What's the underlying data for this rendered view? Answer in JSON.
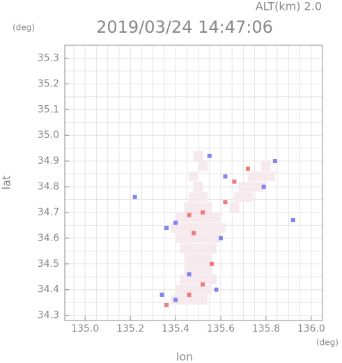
{
  "chart_data": {
    "type": "scatter",
    "title": "2019/03/24 14:47:06",
    "subtitle": "ALT(km)  2.0",
    "y_unit": "(deg)",
    "x_unit": "(deg)",
    "xlabel": "lon",
    "ylabel": "lat",
    "xlim": [
      134.91,
      136.05
    ],
    "ylim": [
      34.28,
      35.35
    ],
    "xticks": [
      {
        "value": 135,
        "label": "135.0"
      },
      135.2,
      135.4,
      135.6,
      135.8,
      {
        "value": 136,
        "label": "136.0"
      }
    ],
    "yticks": [
      34.3,
      34.4,
      34.5,
      34.6,
      34.7,
      34.8,
      34.9,
      {
        "value": 35,
        "label": "35.0"
      },
      35.1,
      35.2,
      35.3
    ],
    "xgrid": [
      134.95,
      135,
      135.05,
      135.1,
      135.15,
      135.2,
      135.25,
      135.3,
      135.35,
      135.4,
      135.45,
      135.5,
      135.55,
      135.6,
      135.65,
      135.7,
      135.75,
      135.8,
      135.85,
      135.9,
      135.95,
      136,
      136.05
    ],
    "ygrid": [
      34.3,
      34.35,
      34.4,
      34.45,
      34.5,
      34.55,
      34.6,
      34.65,
      34.7,
      34.75,
      34.8,
      34.85,
      34.9,
      34.95,
      35,
      35.05,
      35.1,
      35.15,
      35.2,
      35.25,
      35.3,
      35.35
    ],
    "grid": true,
    "series": [
      {
        "color": "#f6eaee",
        "x": [
          135.4,
          135.44,
          135.48,
          135.52,
          135.42,
          135.46,
          135.5,
          135.54,
          135.44,
          135.48,
          135.52,
          135.56,
          135.46,
          135.5,
          135.54,
          135.46,
          135.5,
          135.54,
          135.44,
          135.48,
          135.52,
          135.56,
          135.42,
          135.46,
          135.5,
          135.54,
          135.58,
          135.4,
          135.44,
          135.48,
          135.52,
          135.56,
          135.6,
          135.42,
          135.46,
          135.5,
          135.54,
          135.58,
          135.46,
          135.5,
          135.54,
          135.66,
          135.48,
          135.52,
          135.68,
          135.72,
          135.5,
          135.7,
          135.74,
          135.78,
          135.48,
          135.74,
          135.78,
          135.82,
          135.52,
          135.8,
          135.5
        ],
        "y": [
          34.36,
          34.36,
          34.36,
          34.36,
          34.4,
          34.4,
          34.4,
          34.4,
          34.44,
          34.44,
          34.44,
          34.44,
          34.48,
          34.48,
          34.48,
          34.52,
          34.52,
          34.52,
          34.56,
          34.56,
          34.56,
          34.56,
          34.6,
          34.6,
          34.6,
          34.6,
          34.6,
          34.64,
          34.64,
          34.64,
          34.64,
          34.64,
          34.64,
          34.68,
          34.68,
          34.68,
          34.68,
          34.68,
          34.72,
          34.72,
          34.72,
          34.72,
          34.76,
          34.76,
          34.76,
          34.76,
          34.8,
          34.8,
          34.8,
          34.8,
          34.84,
          34.84,
          34.84,
          34.84,
          34.88,
          34.88,
          34.92
        ]
      },
      {
        "color": "#ee7c7c",
        "x": [
          135.36,
          135.46,
          135.52,
          135.52,
          135.46,
          135.72,
          135.66,
          135.56,
          135.48,
          135.62
        ],
        "y": [
          34.34,
          34.38,
          34.42,
          34.7,
          34.69,
          34.87,
          34.82,
          34.5,
          34.62,
          34.74
        ]
      },
      {
        "color": "#7f86ee",
        "x": [
          135.34,
          135.4,
          135.58,
          135.4,
          135.6,
          135.62,
          135.84,
          135.55,
          135.36,
          135.22,
          135.92,
          135.79,
          135.46
        ],
        "y": [
          34.38,
          34.36,
          34.4,
          34.66,
          34.6,
          34.84,
          34.9,
          34.92,
          34.64,
          34.76,
          34.67,
          34.8,
          34.46
        ]
      }
    ]
  }
}
